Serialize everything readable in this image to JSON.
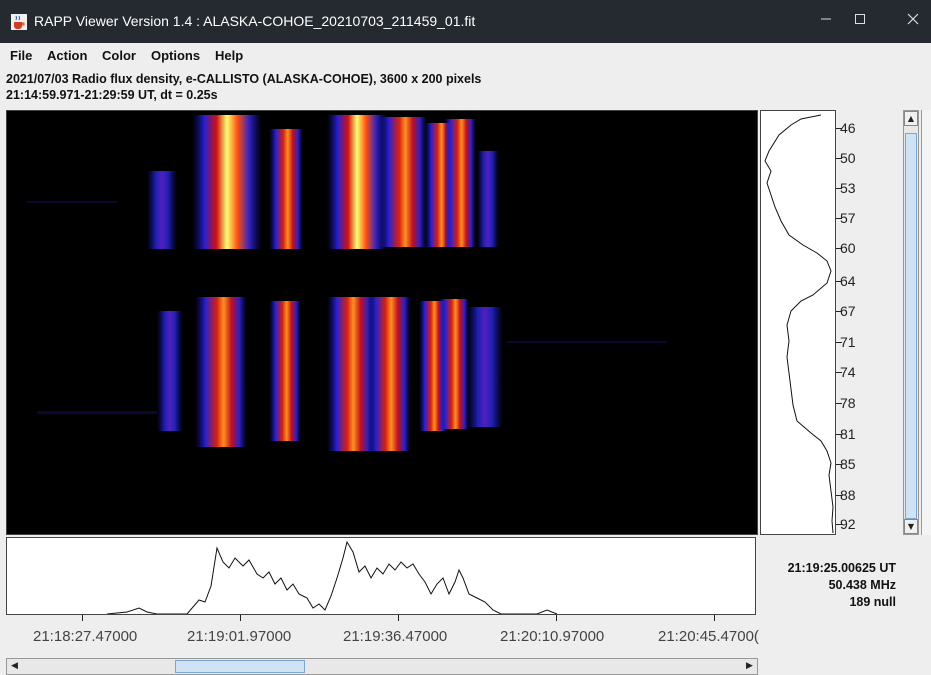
{
  "window": {
    "title": "RAPP Viewer Version 1.4 : ALASKA-COHOE_20210703_211459_01.fit"
  },
  "menu": [
    "File",
    "Action",
    "Color",
    "Options",
    "Help"
  ],
  "info": {
    "line1": "2021/07/03  Radio flux density, e-CALLISTO (ALASKA-COHOE),  3600 x 200 pixels",
    "line2": "21:14:59.971-21:29:59 UT,  dt = 0.25s"
  },
  "freq_axis": [
    "46",
    "50",
    "53",
    "57",
    "60",
    "64",
    "67",
    "71",
    "74",
    "78",
    "81",
    "85",
    "88",
    "92"
  ],
  "time_axis": [
    "21:18:27.47000",
    "21:19:01.97000",
    "21:19:36.47000",
    "21:20:10.97000",
    "21:20:45.4700("
  ],
  "readout": {
    "time": "21:19:25.00625 UT",
    "freq": "50.438 MHz",
    "value": "189 null"
  },
  "colors": {
    "titlebar": "#252a30",
    "background": "#000000",
    "burst_hot": "#ffff66",
    "burst_mid": "#ff3300",
    "burst_cool": "#2020cc"
  },
  "icons": {
    "app": "java-cup-icon",
    "minimize": "minimize-icon",
    "maximize": "maximize-icon",
    "close": "close-icon"
  }
}
